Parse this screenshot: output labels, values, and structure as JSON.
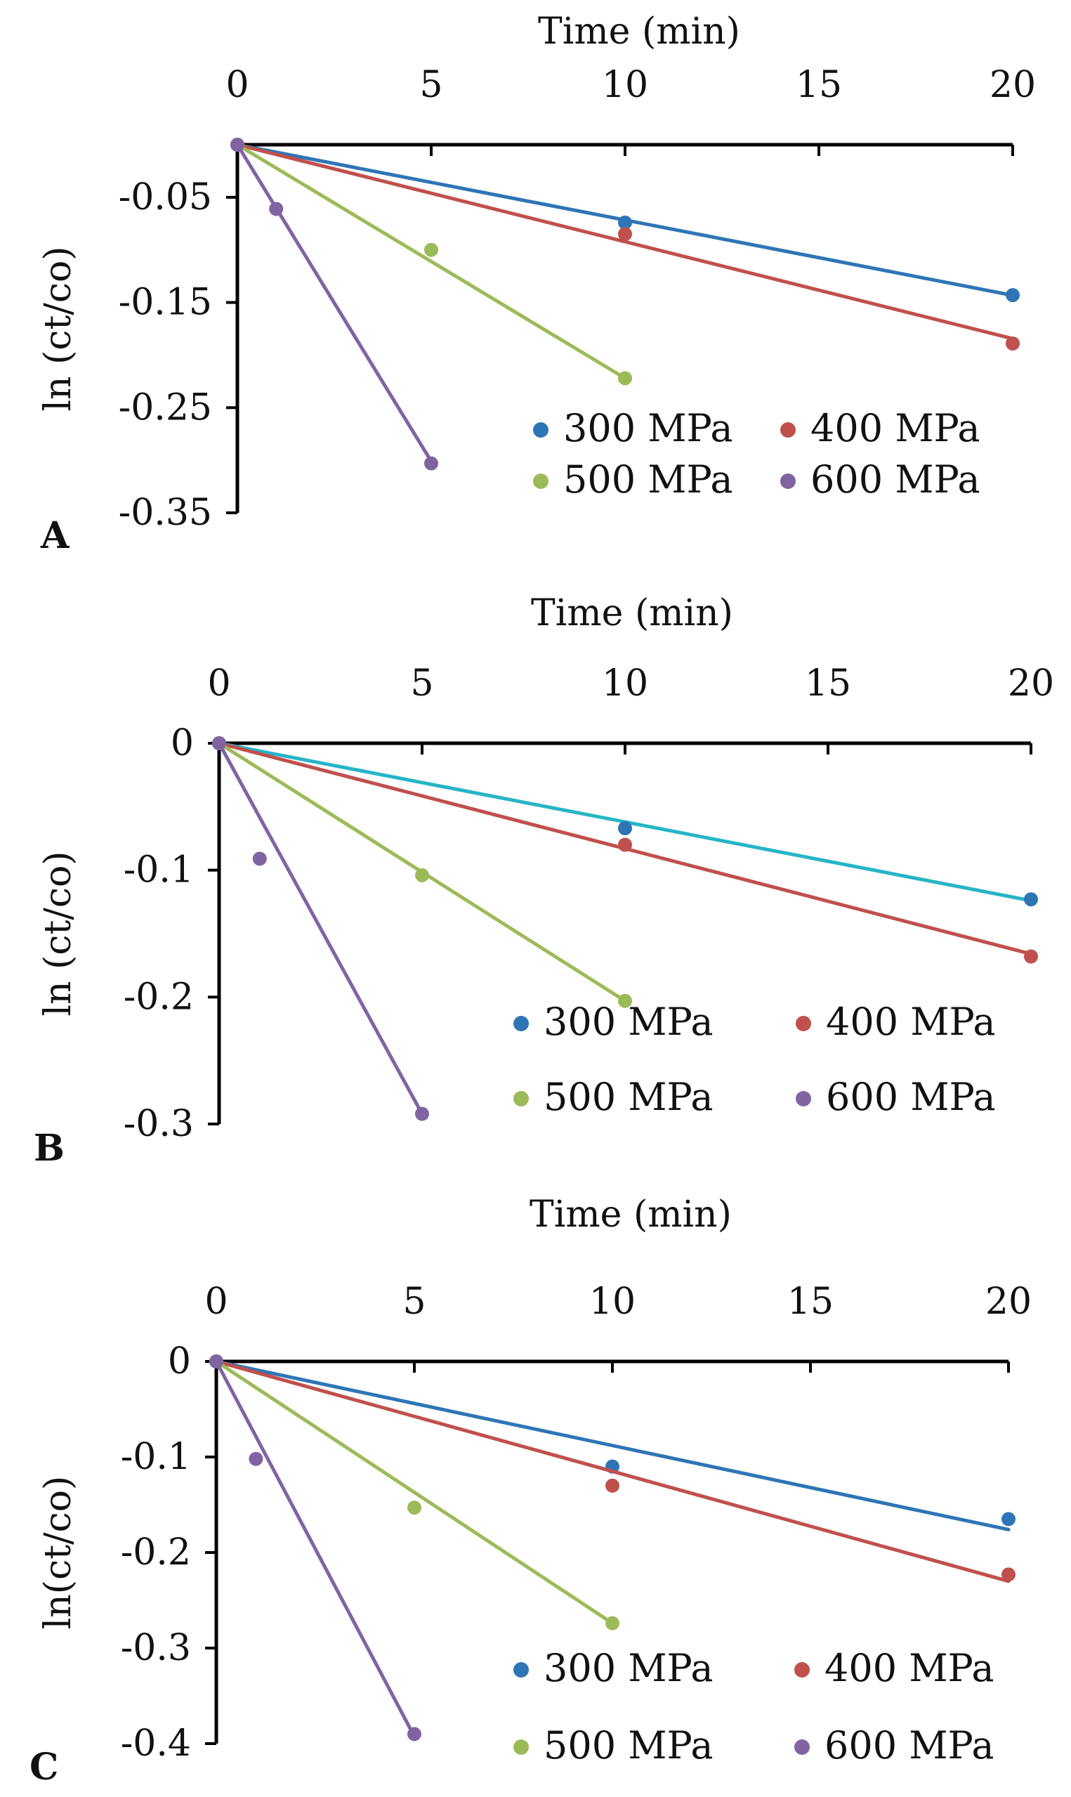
{
  "figure": {
    "colors": {
      "300 MPa": "#2e75b6",
      "400 MPa": "#c0504d",
      "500 MPa": "#9bbb59",
      "600 MPa": "#8064a2",
      "300 MPa line (B)": "#26b5c6"
    }
  },
  "chart_data": [
    {
      "type": "scatter",
      "panel": "A",
      "xlabel": "Time (min)",
      "ylabel": "ln (ct/co)",
      "x_ticks": [
        "0",
        "5",
        "10",
        "15",
        "20"
      ],
      "y_ticks": [
        "-0.05",
        "-0.15",
        "-0.25",
        "-0.35"
      ],
      "xlim": [
        0,
        20
      ],
      "ylim": [
        -0.35,
        0
      ],
      "x_axis_position": "top",
      "grid": false,
      "legend_position": "bottom-right",
      "series": [
        {
          "name": "300 MPa",
          "x": [
            0,
            10,
            20
          ],
          "y": [
            0,
            -0.074,
            -0.143
          ],
          "fit": [
            0,
            -0.00716
          ]
        },
        {
          "name": "400 MPa",
          "x": [
            0,
            10,
            20
          ],
          "y": [
            0,
            -0.085,
            -0.189
          ],
          "fit": [
            0,
            -0.00922
          ]
        },
        {
          "name": "500 MPa",
          "x": [
            0,
            5,
            10
          ],
          "y": [
            0,
            -0.1,
            -0.222
          ],
          "fit": [
            0,
            -0.0222
          ]
        },
        {
          "name": "600 MPa",
          "x": [
            0,
            1,
            5
          ],
          "y": [
            0,
            -0.061,
            -0.303
          ],
          "fit": [
            0,
            -0.0602
          ]
        }
      ]
    },
    {
      "type": "scatter",
      "panel": "B",
      "xlabel": "Time (min)",
      "ylabel": "ln (ct/co)",
      "x_ticks": [
        "0",
        "5",
        "10",
        "15",
        "20"
      ],
      "y_ticks": [
        "0",
        "-0.1",
        "-0.2",
        "-0.3"
      ],
      "xlim": [
        0,
        20
      ],
      "ylim": [
        -0.3,
        0
      ],
      "x_axis_position": "top",
      "grid": false,
      "legend_position": "bottom-right",
      "series": [
        {
          "name": "300 MPa",
          "x": [
            0,
            10,
            20
          ],
          "y": [
            0,
            -0.067,
            -0.123
          ],
          "fit": [
            0,
            -0.0062
          ]
        },
        {
          "name": "400 MPa",
          "x": [
            0,
            10,
            20
          ],
          "y": [
            0,
            -0.08,
            -0.168
          ],
          "fit": [
            0,
            -0.0083
          ]
        },
        {
          "name": "500 MPa",
          "x": [
            0,
            5,
            10
          ],
          "y": [
            0,
            -0.104,
            -0.203
          ],
          "fit": [
            0,
            -0.0203
          ]
        },
        {
          "name": "600 MPa",
          "x": [
            0,
            1,
            5
          ],
          "y": [
            0,
            -0.091,
            -0.292
          ],
          "fit": [
            0,
            -0.0584
          ]
        }
      ]
    },
    {
      "type": "scatter",
      "panel": "C",
      "xlabel": "Time (min)",
      "ylabel": "ln(ct/co)",
      "x_ticks": [
        "0",
        "5",
        "10",
        "15",
        "20"
      ],
      "y_ticks": [
        "0",
        "-0.1",
        "-0.2",
        "-0.3",
        "-0.4"
      ],
      "xlim": [
        0,
        20
      ],
      "ylim": [
        -0.4,
        0
      ],
      "x_axis_position": "top",
      "grid": false,
      "legend_position": "bottom-right",
      "series": [
        {
          "name": "300 MPa",
          "x": [
            0,
            10,
            20
          ],
          "y": [
            0,
            -0.11,
            -0.165
          ],
          "fit": [
            0,
            -0.0088
          ]
        },
        {
          "name": "400 MPa",
          "x": [
            0,
            10,
            20
          ],
          "y": [
            0,
            -0.13,
            -0.223
          ],
          "fit": [
            0,
            -0.0115
          ]
        },
        {
          "name": "500 MPa",
          "x": [
            0,
            5,
            10
          ],
          "y": [
            0,
            -0.153,
            -0.274
          ],
          "fit": [
            0,
            -0.0274
          ]
        },
        {
          "name": "600 MPa",
          "x": [
            0,
            1,
            5
          ],
          "y": [
            0,
            -0.102,
            -0.39
          ],
          "fit": [
            0,
            -0.0785
          ]
        }
      ]
    }
  ]
}
